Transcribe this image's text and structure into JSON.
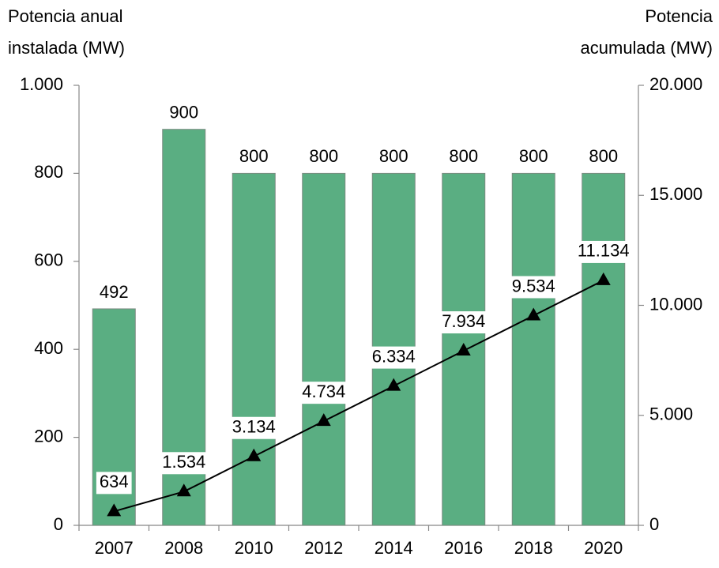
{
  "chart_data": {
    "type": "bar_line",
    "ylabel": [
      "Potencia anual",
      "instalada (MW)"
    ],
    "y2label": [
      "Potencia",
      "acumulada (MW)"
    ],
    "categories": [
      "2007",
      "2008",
      "2010",
      "2012",
      "2014",
      "2016",
      "2018",
      "2020"
    ],
    "series": [
      {
        "name": "Potencia anual instalada",
        "type": "bar",
        "color": "#5aae82",
        "values": [
          492,
          900,
          800,
          800,
          800,
          800,
          800,
          800
        ]
      },
      {
        "name": "Potencia acumulada",
        "type": "line",
        "axis": "y2",
        "color": "#000000",
        "values": [
          634,
          1534,
          3134,
          4734,
          6334,
          7934,
          9534,
          11134
        ],
        "value_labels": [
          "634",
          "1.534",
          "3.134",
          "4.734",
          "6.334",
          "7.934",
          "9.534",
          "11.134"
        ]
      }
    ],
    "ylim": [
      0,
      1000
    ],
    "yticks": [
      0,
      200,
      400,
      600,
      800,
      {
        "value": 1000,
        "label": "1.000"
      }
    ],
    "y2lim": [
      0,
      20000
    ],
    "y2ticks": [
      0,
      {
        "value": 5000,
        "label": "5.000"
      },
      {
        "value": 10000,
        "label": "10.000"
      },
      {
        "value": 15000,
        "label": "15.000"
      },
      {
        "value": 20000,
        "label": "20.000"
      }
    ],
    "grid": false
  }
}
